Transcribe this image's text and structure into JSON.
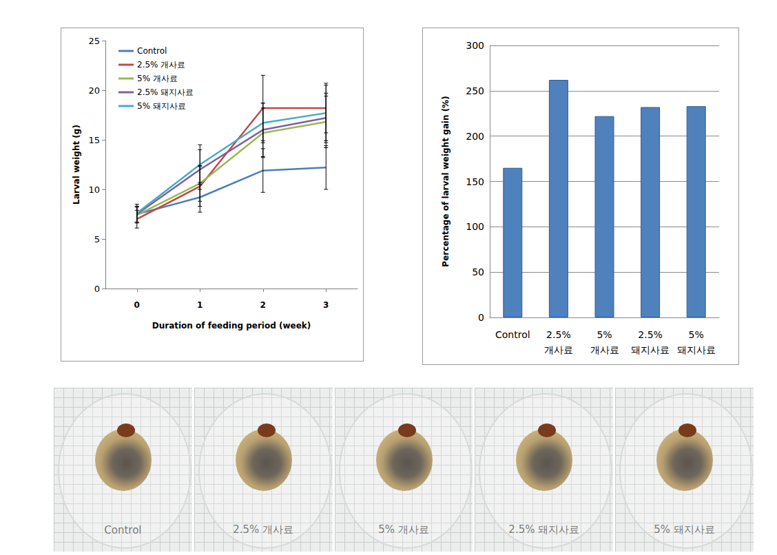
{
  "chart_data": [
    {
      "type": "line",
      "xlabel": "Duration of feeding period (week)",
      "ylabel": "Larval weight (g)",
      "categories": [
        "0",
        "1",
        "2",
        "3"
      ],
      "ylim": [
        0,
        25
      ],
      "yticks": [
        0,
        5,
        10,
        15,
        20,
        25
      ],
      "legend": "upper left",
      "grid": false,
      "series": [
        {
          "name": "Control",
          "color": "#4a7ebb",
          "values": [
            7.5,
            9.2,
            11.9,
            12.2
          ],
          "errors": [
            0.8,
            1.5,
            2.2,
            2.2
          ]
        },
        {
          "name": "2.5% 개사료",
          "color": "#be4b48",
          "values": [
            7.0,
            10.3,
            18.2,
            18.2
          ],
          "errors": [
            0.9,
            2.0,
            3.3,
            2.5
          ]
        },
        {
          "name": "5% 개사료",
          "color": "#98b954",
          "values": [
            7.4,
            10.6,
            15.7,
            16.8
          ],
          "errors": [
            0.8,
            1.8,
            2.5,
            2.6
          ]
        },
        {
          "name": "2.5% 돼지사료",
          "color": "#7d60a0",
          "values": [
            7.5,
            12.0,
            16.0,
            17.2
          ],
          "errors": [
            0.8,
            2.0,
            2.7,
            2.5
          ]
        },
        {
          "name": "5% 돼지사료",
          "color": "#46aac5",
          "values": [
            7.6,
            12.5,
            16.7,
            17.7
          ],
          "errors": [
            0.9,
            2.0,
            2.0,
            2.8
          ]
        }
      ]
    },
    {
      "type": "bar",
      "ylabel": "Percentage of larval weight gain (%)",
      "categories": [
        "Control",
        "2.5% 개사료",
        "5% 개사료",
        "2.5% 돼지사료",
        "5% 돼지사료"
      ],
      "values": [
        165,
        262,
        222,
        232,
        233
      ],
      "color": "#4f81bd",
      "ylim": [
        0,
        300
      ],
      "yticks": [
        0,
        50,
        100,
        150,
        200,
        250,
        300
      ],
      "grid": true
    }
  ],
  "photos": {
    "labels": [
      "Control",
      "2.5% 개사료",
      "5% 개사료",
      "2.5% 돼지사료",
      "5% 돼지사료"
    ]
  }
}
